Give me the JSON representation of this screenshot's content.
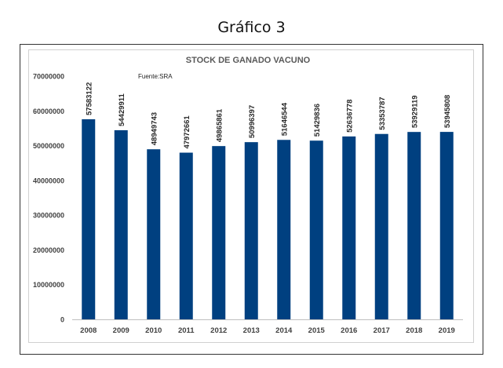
{
  "page": {
    "heading": "Gráfico 3"
  },
  "chart_data": {
    "type": "bar",
    "title": "STOCK DE GANADO VACUNO",
    "source_note": "Fuente:SRA",
    "xlabel": "",
    "ylabel": "",
    "ylim": [
      0,
      70000000
    ],
    "y_ticks": [
      0,
      10000000,
      20000000,
      30000000,
      40000000,
      50000000,
      60000000,
      70000000
    ],
    "grid": false,
    "bar_color": "#004080",
    "categories": [
      "2008",
      "2009",
      "2010",
      "2011",
      "2012",
      "2013",
      "2014",
      "2015",
      "2016",
      "2017",
      "2018",
      "2019"
    ],
    "values": [
      57583122,
      54429911,
      48949743,
      47972661,
      49865861,
      50996397,
      51646544,
      51429836,
      52636778,
      53353787,
      53929119,
      53945808
    ]
  }
}
